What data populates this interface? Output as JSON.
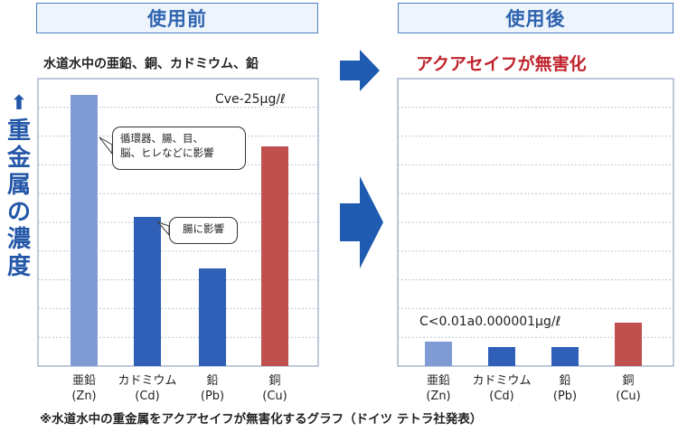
{
  "header": {
    "before": "使用前",
    "after": "使用後"
  },
  "subtitle_before": "水道水中の亜鉛、銅、カドミウム、鉛",
  "subtitle_after": "アクアセイフが無害化",
  "y_label_chars": [
    "重",
    "金",
    "属",
    "の",
    "濃",
    "度"
  ],
  "callouts": {
    "zn": [
      "循環器、腸、目、",
      "脳、ヒレなどに影響"
    ],
    "cd": "腸に影響"
  },
  "footnote": "※水道水中の重金属をアクアセイフが無害化するグラフ（ドイツ テトラ社発表）",
  "colors": {
    "blue_light": "#7f9bd4",
    "blue_dark": "#2f5fb7",
    "red": "#c0504d",
    "arrow": "#1f5bb0",
    "frame": "#8fa6c4",
    "grid": "#b8c4d6"
  },
  "chart_data": [
    {
      "type": "bar",
      "name": "使用前",
      "annotation": "Cve-25µg/ℓ",
      "categories": [
        {
          "name": "亜鉛",
          "symbol": "(Zn)"
        },
        {
          "name": "カドミウム",
          "symbol": "(Cd)"
        },
        {
          "name": "鉛",
          "symbol": "(Pb)"
        },
        {
          "name": "銅",
          "symbol": "(Cu)"
        }
      ],
      "values": [
        100,
        55,
        36,
        81
      ],
      "bar_colors": [
        "#7f9bd4",
        "#2f5fb7",
        "#2f5fb7",
        "#c0504d"
      ],
      "ylim": [
        0,
        100
      ],
      "grid": true
    },
    {
      "type": "bar",
      "name": "使用後",
      "annotation": "C<0.01a0.000001µg/ℓ",
      "categories": [
        {
          "name": "亜鉛",
          "symbol": "(Zn)"
        },
        {
          "name": "カドミウム",
          "symbol": "(Cd)"
        },
        {
          "name": "鉛",
          "symbol": "(Pb)"
        },
        {
          "name": "銅",
          "symbol": "(Cu)"
        }
      ],
      "values": [
        9,
        7,
        7,
        16
      ],
      "bar_colors": [
        "#7f9bd4",
        "#2f5fb7",
        "#2f5fb7",
        "#c0504d"
      ],
      "ylim": [
        0,
        100
      ],
      "grid": true
    }
  ]
}
